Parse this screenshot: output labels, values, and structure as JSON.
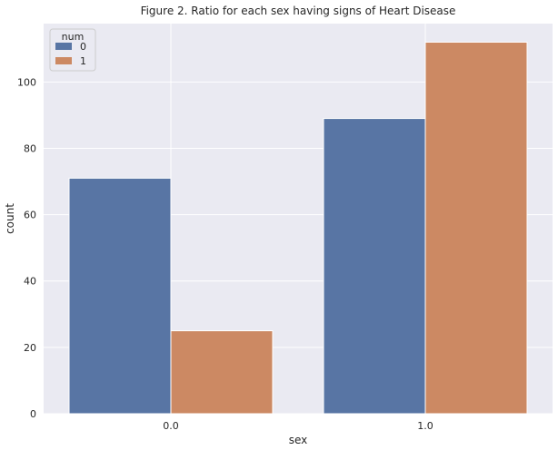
{
  "chart_data": {
    "type": "bar",
    "title": "Figure 2. Ratio for each sex having signs of Heart Disease",
    "xlabel": "sex",
    "ylabel": "count",
    "categories": [
      "0.0",
      "1.0"
    ],
    "series": [
      {
        "name": "0",
        "values": [
          71,
          89
        ],
        "color": "#5875a4"
      },
      {
        "name": "1",
        "values": [
          25,
          112
        ],
        "color": "#cc8963"
      }
    ],
    "legend": {
      "title": "num",
      "placement": "top-left"
    },
    "ylim": [
      0,
      117.6
    ],
    "yticks": [
      0,
      20,
      40,
      60,
      80,
      100
    ],
    "grid": true,
    "background_color": "#eaeaf2"
  }
}
